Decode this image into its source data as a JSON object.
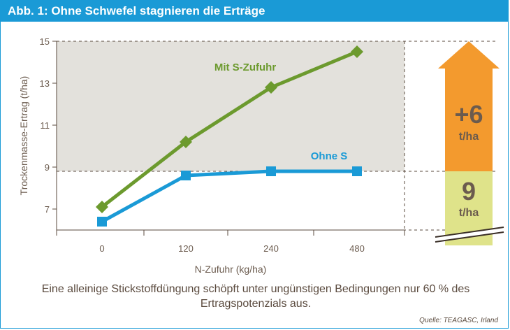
{
  "header": {
    "title": "Abb. 1: Ohne Schwefel stagnieren die Erträge"
  },
  "caption": "Eine alleinige Stickstoffdüngung schöpft unter ungünstigen Bedingungen nur 60 % des Ertragspotenzials aus.",
  "source": "Quelle: TEAGASC, Irland",
  "colors": {
    "header": "#1a9ad6",
    "with_s": "#6c9a2e",
    "without_s": "#1a9ad6",
    "shade": "#e3e1dc",
    "arrow_orange": "#f39a2e",
    "arrow_yellow": "#dfe38a",
    "text_brown": "#6b5b4e"
  },
  "chart_data": {
    "type": "line",
    "title": "Abb. 1: Ohne Schwefel stagnieren die Erträge",
    "xlabel": "N-Zufuhr (kg/ha)",
    "ylabel": "Trockenmasse-Ertrag (t/ha)",
    "categories": [
      "0",
      "120",
      "240",
      "480"
    ],
    "ylim": [
      6,
      15
    ],
    "yticks": [
      7,
      9,
      11,
      13,
      15
    ],
    "grid": false,
    "series": [
      {
        "name": "Mit S-Zufuhr",
        "values": [
          7.1,
          10.2,
          12.8,
          14.5
        ],
        "color": "#6c9a2e",
        "marker": "diamond"
      },
      {
        "name": "Ohne S",
        "values": [
          6.4,
          8.6,
          8.8,
          8.8
        ],
        "color": "#1a9ad6",
        "marker": "square"
      }
    ],
    "shaded_band": {
      "from": 8.8,
      "to": 15
    },
    "annotation": {
      "gain_value": "+6",
      "gain_unit": "t/ha",
      "base_value": "9",
      "base_unit": "t/ha"
    }
  }
}
